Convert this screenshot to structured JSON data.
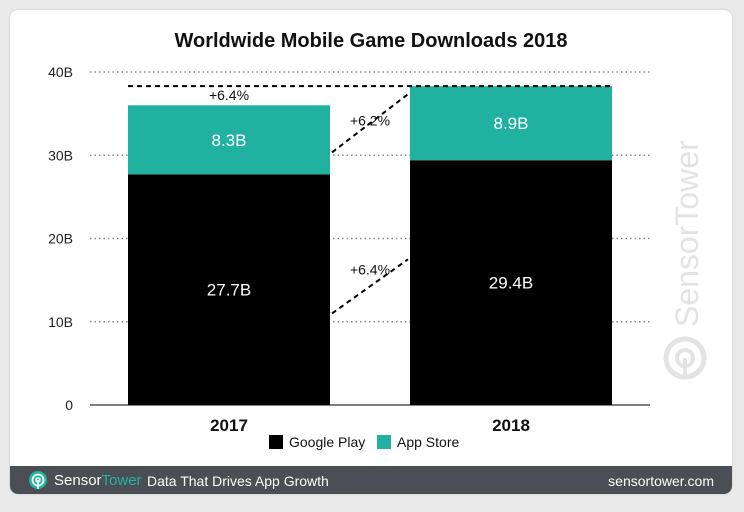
{
  "chart_data": {
    "type": "bar",
    "stacked": true,
    "title": "Worldwide Mobile Game Downloads 2018",
    "categories": [
      "2017",
      "2018"
    ],
    "series": [
      {
        "name": "Google Play",
        "values": [
          27.7,
          29.4
        ],
        "labels": [
          "27.7B",
          "29.4B"
        ],
        "color": "#000000"
      },
      {
        "name": "App Store",
        "values": [
          8.3,
          8.9
        ],
        "labels": [
          "8.3B",
          "8.9B"
        ],
        "color": "#21b1a0"
      }
    ],
    "ylim": [
      0,
      40
    ],
    "yticks": [
      0,
      10,
      20,
      30,
      40
    ],
    "ytick_labels": [
      "0",
      "10B",
      "20B",
      "30B",
      "40B"
    ],
    "grid": "dotted horizontal",
    "legend": "bottom-center",
    "annotations": {
      "total_growth": "+6.4%",
      "app_store_growth": "+6.2%",
      "google_play_growth": "+6.4%"
    }
  },
  "footer": {
    "brand_part1": "Sensor",
    "brand_part2": "Tower",
    "tagline": "Data That Drives App Growth",
    "site": "sensortower.com"
  },
  "watermark": {
    "text": "SensorTower",
    "icon": "sensortower-logo-icon"
  },
  "colors": {
    "accent": "#21b1a0",
    "footer_bg": "#4b4e55"
  }
}
